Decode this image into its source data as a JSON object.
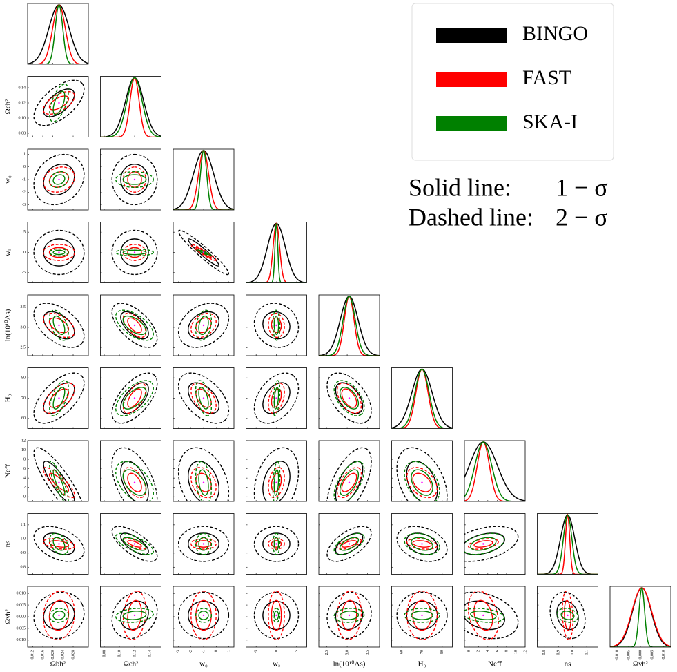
{
  "chart_data": {
    "type": "corner",
    "parameters": [
      {
        "label": "Ωbh²",
        "fiducial": 0.0224,
        "lim": [
          0.01,
          0.034
        ],
        "ticks": [
          {
            "value": 0.012,
            "label": "0.012"
          },
          0.016,
          {
            "value": 0.02,
            "label": "0.020"
          },
          0.024,
          0.028
        ]
      },
      {
        "label": "Ωch²",
        "fiducial": 0.12,
        "lim": [
          0.075,
          0.155
        ],
        "ticks": [
          {
            "value": 0.08,
            "label": "0.08"
          },
          {
            "value": 0.1,
            "label": "0.10"
          },
          0.12,
          0.14
        ]
      },
      {
        "label": "w₀",
        "fiducial": -1,
        "lim": [
          -3.4,
          1.4
        ],
        "ticks": [
          -3,
          -2,
          -1,
          0,
          1
        ]
      },
      {
        "label": "wₐ",
        "fiducial": 0,
        "lim": [
          -7.5,
          7.5
        ],
        "ticks": [
          -5,
          0,
          5
        ]
      },
      {
        "label": "ln(10¹⁰As)",
        "fiducial": 3.05,
        "lim": [
          2.3,
          3.8
        ],
        "ticks": [
          2.5,
          {
            "value": 3,
            "label": "3.0"
          },
          3.5
        ]
      },
      {
        "label": "H₀",
        "fiducial": 70,
        "lim": [
          55,
          85
        ],
        "ticks": [
          60,
          70,
          80
        ]
      },
      {
        "label": "Neff",
        "fiducial": 3.04,
        "lim": [
          -1,
          12
        ],
        "ticks": [
          0,
          2,
          4,
          6,
          8,
          10,
          12
        ]
      },
      {
        "label": "ns",
        "fiducial": 0.965,
        "lim": [
          0.75,
          1.18
        ],
        "ticks": [
          0.8,
          0.9,
          {
            "value": 1,
            "label": "1.0"
          },
          1.1
        ]
      },
      {
        "label": "Ωνh²",
        "fiducial": 0.0006,
        "lim": [
          -0.013,
          0.013
        ],
        "ticks": [
          {
            "value": -0.01,
            "label": "-0.010"
          },
          -0.005,
          {
            "value": 0,
            "label": "0.000"
          },
          0.005,
          {
            "value": 0.01,
            "label": "0.010"
          }
        ]
      }
    ],
    "series": [
      {
        "name": "BINGO",
        "color": "#000000",
        "sigmas": [
          0.004,
          0.012,
          0.8,
          2.2,
          0.22,
          5,
          3,
          0.05,
          0.004
        ]
      },
      {
        "name": "FAST",
        "color": "#ff0000",
        "sigmas": [
          0.0025,
          0.006,
          0.4,
          0.8,
          0.12,
          3,
          1.3,
          0.015,
          0.0042
        ]
      },
      {
        "name": "SKA-I",
        "color": "#008000",
        "sigmas": [
          0.0015,
          0.01,
          0.25,
          0.35,
          0.15,
          3.5,
          1.8,
          0.03,
          0.0012
        ]
      }
    ],
    "correlations": [
      [],
      [
        0.6
      ],
      [
        0.2,
        0.0
      ],
      [
        0.0,
        0.0,
        -0.95
      ],
      [
        -0.5,
        -0.6,
        0.3,
        -0.1
      ],
      [
        0.6,
        0.6,
        -0.5,
        0.4,
        -0.5
      ],
      [
        -0.85,
        -0.5,
        -0.3,
        0.3,
        0.6,
        -0.4
      ],
      [
        -0.4,
        -0.7,
        0.0,
        0.0,
        0.6,
        -0.3,
        0.4
      ],
      [
        0.1,
        0.2,
        0.0,
        0.0,
        0.1,
        0.0,
        -0.3,
        -0.2
      ]
    ],
    "solid_label": "Solid line:",
    "solid_value": "1 − σ",
    "dashed_label": "Dashed line:",
    "dashed_value": "2 − σ"
  }
}
